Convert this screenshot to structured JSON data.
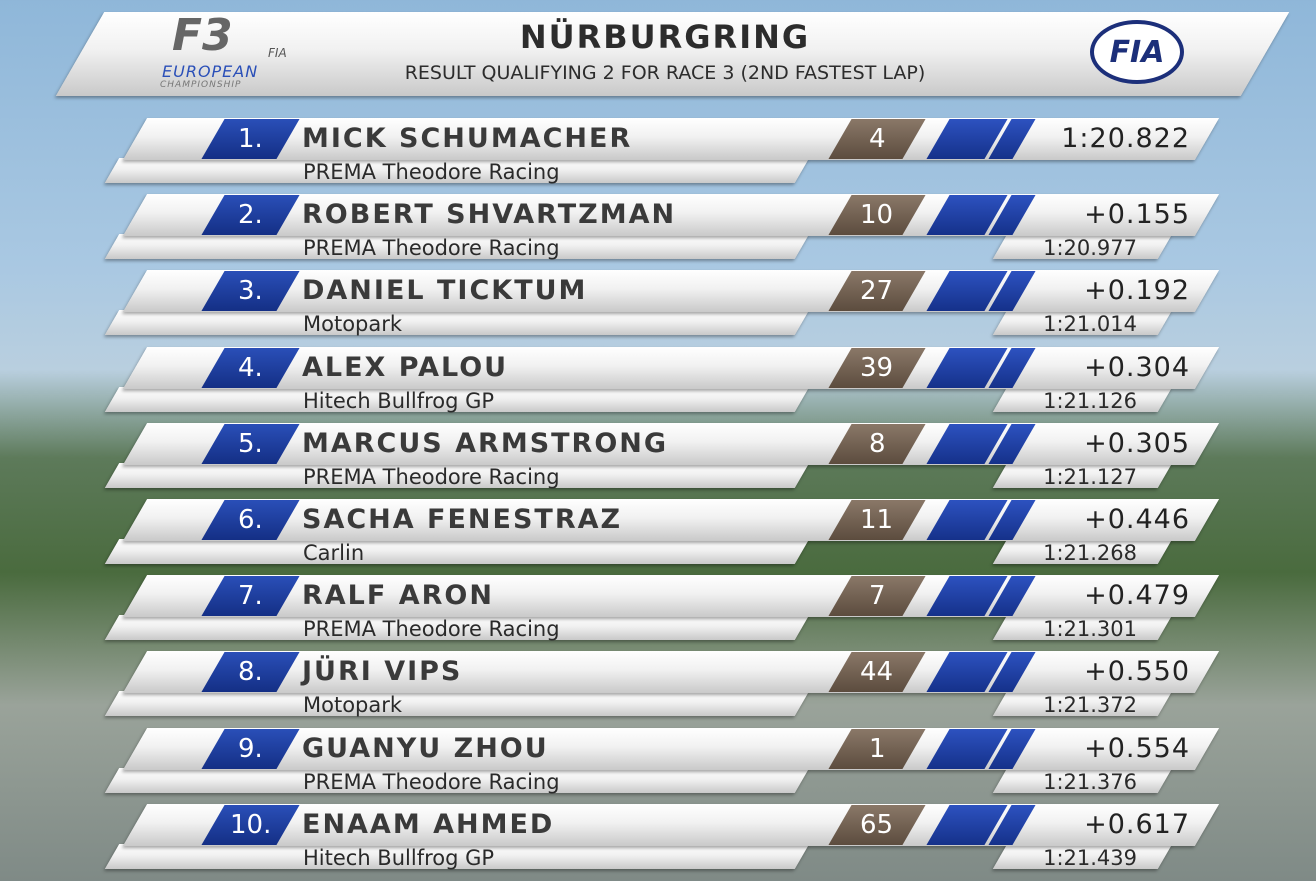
{
  "header": {
    "logo": {
      "f3": "F3",
      "fia": "FIA",
      "line1": "EUROPEAN",
      "line2": "CHAMPIONSHIP"
    },
    "title": "NÜRBURGRING",
    "subtitle": "RESULT QUALIFYING 2 FOR RACE 3 (2ND FASTEST LAP)",
    "badge": "FIA"
  },
  "rows": [
    {
      "position": "1.",
      "name": "MICK SCHUMACHER",
      "team": "PREMA Theodore Racing",
      "number": "4",
      "gap": "1:20.822",
      "time": null
    },
    {
      "position": "2.",
      "name": "ROBERT SHVARTZMAN",
      "team": "PREMA Theodore Racing",
      "number": "10",
      "gap": "+0.155",
      "time": "1:20.977"
    },
    {
      "position": "3.",
      "name": "DANIEL TICKTUM",
      "team": "Motopark",
      "number": "27",
      "gap": "+0.192",
      "time": "1:21.014"
    },
    {
      "position": "4.",
      "name": "ALEX PALOU",
      "team": "Hitech Bullfrog GP",
      "number": "39",
      "gap": "+0.304",
      "time": "1:21.126"
    },
    {
      "position": "5.",
      "name": "MARCUS ARMSTRONG",
      "team": "PREMA Theodore Racing",
      "number": "8",
      "gap": "+0.305",
      "time": "1:21.127"
    },
    {
      "position": "6.",
      "name": "SACHA FENESTRAZ",
      "team": "Carlin",
      "number": "11",
      "gap": "+0.446",
      "time": "1:21.268"
    },
    {
      "position": "7.",
      "name": "RALF ARON",
      "team": "PREMA Theodore Racing",
      "number": "7",
      "gap": "+0.479",
      "time": "1:21.301"
    },
    {
      "position": "8.",
      "name": "JÜRI VIPS",
      "team": "Motopark",
      "number": "44",
      "gap": "+0.550",
      "time": "1:21.372"
    },
    {
      "position": "9.",
      "name": "GUANYU ZHOU",
      "team": "PREMA Theodore Racing",
      "number": "1",
      "gap": "+0.554",
      "time": "1:21.376"
    },
    {
      "position": "10.",
      "name": "ENAAM AHMED",
      "team": "Hitech Bullfrog GP",
      "number": "65",
      "gap": "+0.617",
      "time": "1:21.439"
    }
  ]
}
